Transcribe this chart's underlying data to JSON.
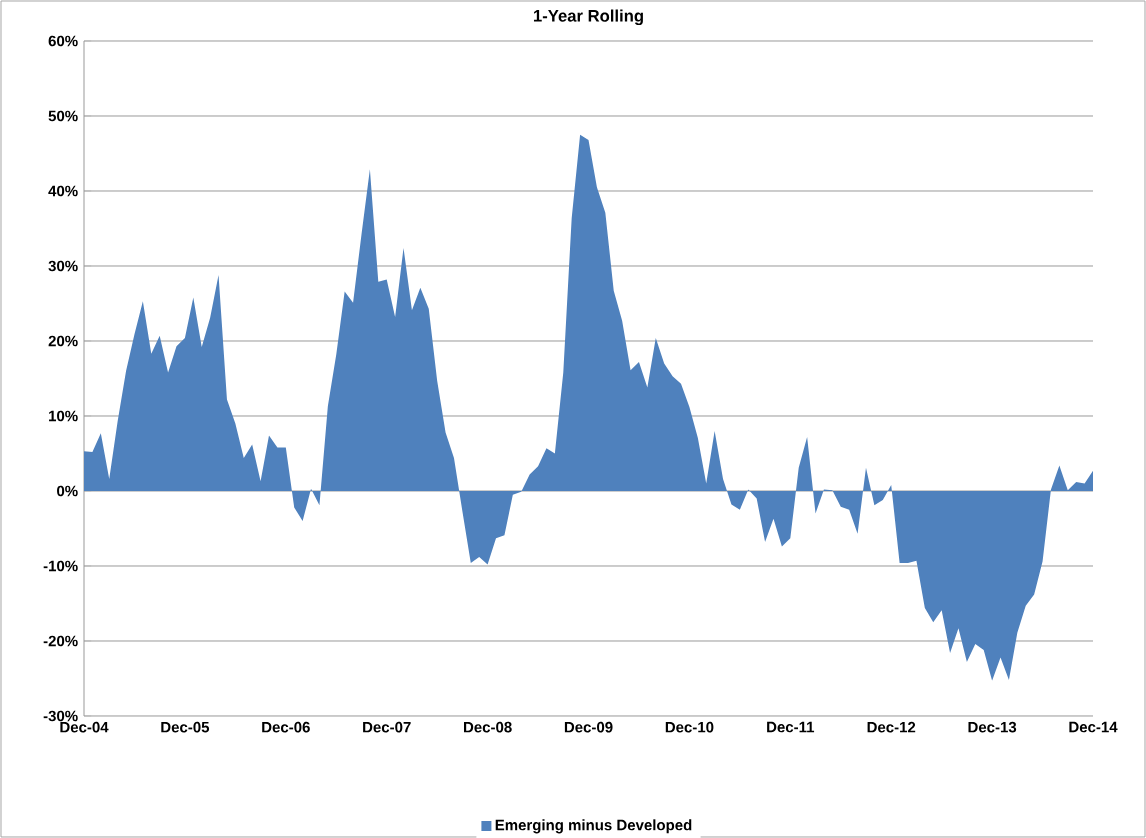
{
  "chart_data": {
    "type": "area",
    "title": "1-Year Rolling",
    "x": [
      "2004-12",
      "2005-01",
      "2005-02",
      "2005-03",
      "2005-04",
      "2005-05",
      "2005-06",
      "2005-07",
      "2005-08",
      "2005-09",
      "2005-10",
      "2005-11",
      "2005-12",
      "2006-01",
      "2006-02",
      "2006-03",
      "2006-04",
      "2006-05",
      "2006-06",
      "2006-07",
      "2006-08",
      "2006-09",
      "2006-10",
      "2006-11",
      "2006-12",
      "2007-01",
      "2007-02",
      "2007-03",
      "2007-04",
      "2007-05",
      "2007-06",
      "2007-07",
      "2007-08",
      "2007-09",
      "2007-10",
      "2007-11",
      "2007-12",
      "2008-01",
      "2008-02",
      "2008-03",
      "2008-04",
      "2008-05",
      "2008-06",
      "2008-07",
      "2008-08",
      "2008-09",
      "2008-10",
      "2008-11",
      "2008-12",
      "2009-01",
      "2009-02",
      "2009-03",
      "2009-04",
      "2009-05",
      "2009-06",
      "2009-07",
      "2009-08",
      "2009-09",
      "2009-10",
      "2009-11",
      "2009-12",
      "2010-01",
      "2010-02",
      "2010-03",
      "2010-04",
      "2010-05",
      "2010-06",
      "2010-07",
      "2010-08",
      "2010-09",
      "2010-10",
      "2010-11",
      "2010-12",
      "2011-01",
      "2011-02",
      "2011-03",
      "2011-04",
      "2011-05",
      "2011-06",
      "2011-07",
      "2011-08",
      "2011-09",
      "2011-10",
      "2011-11",
      "2011-12",
      "2012-01",
      "2012-02",
      "2012-03",
      "2012-04",
      "2012-05",
      "2012-06",
      "2012-07",
      "2012-08",
      "2012-09",
      "2012-10",
      "2012-11",
      "2012-12",
      "2013-01",
      "2013-02",
      "2013-03",
      "2013-04",
      "2013-05",
      "2013-06",
      "2013-07",
      "2013-08",
      "2013-09",
      "2013-10",
      "2013-11",
      "2013-12",
      "2014-01",
      "2014-02",
      "2014-03",
      "2014-04",
      "2014-05",
      "2014-06",
      "2014-07",
      "2014-08",
      "2014-09",
      "2014-10",
      "2014-11",
      "2014-12"
    ],
    "series": [
      {
        "name": "Emerging minus Developed",
        "color": "#4f81bd",
        "values": [
          5.3,
          5.2,
          7.7,
          1.6,
          9.3,
          16,
          20.9,
          25.3,
          18.3,
          20.7,
          15.8,
          19.3,
          20.4,
          25.8,
          19.2,
          23.1,
          28.8,
          12.2,
          9.0,
          4.4,
          6.2,
          1.3,
          7.4,
          5.8,
          5.8,
          -2.2,
          -4.0,
          0.3,
          -1.9,
          11.3,
          18.2,
          26.6,
          25.1,
          34.2,
          42.9,
          27.9,
          28.2,
          23.2,
          32.4,
          24.1,
          27.1,
          24.3,
          14.7,
          7.8,
          4.4,
          -2.7,
          -9.6,
          -8.8,
          -9.8,
          -6.3,
          -5.9,
          -0.5,
          -0.1,
          2.2,
          3.3,
          5.7,
          5.0,
          15.8,
          36.4,
          47.5,
          46.8,
          40.5,
          37.1,
          26.7,
          22.7,
          16.1,
          17.2,
          13.8,
          20.4,
          17.0,
          15.3,
          14.3,
          11.2,
          7.1,
          1.0,
          8.0,
          1.6,
          -1.8,
          -2.5,
          0.2,
          -1.0,
          -6.8,
          -3.7,
          -7.4,
          -6.3,
          3.1,
          7.2,
          -3.0,
          0.2,
          0.1,
          -2.1,
          -2.5,
          -5.7,
          3.1,
          -1.9,
          -1.2,
          0.8,
          -9.6,
          -9.6,
          -9.3,
          -15.6,
          -17.5,
          -15.9,
          -21.6,
          -18.3,
          -22.8,
          -20.4,
          -21.2,
          -25.3,
          -22.2,
          -25.2,
          -18.9,
          -15.3,
          -13.8,
          -9.4,
          0.2,
          3.4,
          0.1,
          1.2,
          1.0,
          2.7
        ]
      }
    ],
    "xlim": [
      "2004-12",
      "2014-12"
    ],
    "xticks": [
      {
        "value": "2004-12",
        "label": "Dec-04"
      },
      {
        "value": "2005-12",
        "label": "Dec-05"
      },
      {
        "value": "2006-12",
        "label": "Dec-06"
      },
      {
        "value": "2007-12",
        "label": "Dec-07"
      },
      {
        "value": "2008-12",
        "label": "Dec-08"
      },
      {
        "value": "2009-12",
        "label": "Dec-09"
      },
      {
        "value": "2010-12",
        "label": "Dec-10"
      },
      {
        "value": "2011-12",
        "label": "Dec-11"
      },
      {
        "value": "2012-12",
        "label": "Dec-12"
      },
      {
        "value": "2013-12",
        "label": "Dec-13"
      },
      {
        "value": "2014-12",
        "label": "Dec-14"
      }
    ],
    "ylim": [
      -30,
      60
    ],
    "yticks": [
      {
        "value": -30,
        "label": "-30%"
      },
      {
        "value": -20,
        "label": "-20%"
      },
      {
        "value": -10,
        "label": "-10%"
      },
      {
        "value": 0,
        "label": "0%"
      },
      {
        "value": 10,
        "label": "10%"
      },
      {
        "value": 20,
        "label": "20%"
      },
      {
        "value": 30,
        "label": "30%"
      },
      {
        "value": 40,
        "label": "40%"
      },
      {
        "value": 50,
        "label": "50%"
      },
      {
        "value": 60,
        "label": "60%"
      }
    ],
    "grid": "y",
    "legend": "bottom"
  }
}
